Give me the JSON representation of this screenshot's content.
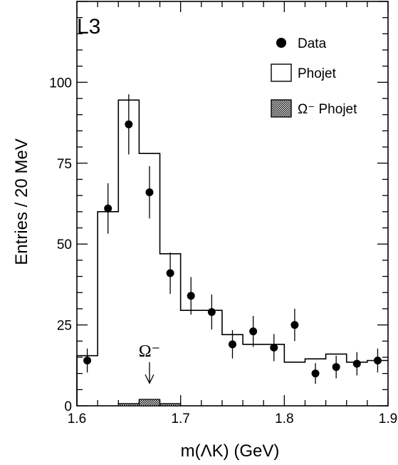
{
  "chart_data": {
    "type": "histogram",
    "experiment_label": "L3",
    "xlabel": "m(ΛK) (GeV)",
    "ylabel": "Entries / 20 MeV",
    "xlim": [
      1.6,
      1.9
    ],
    "ylim": [
      0,
      125
    ],
    "x_ticks": [
      {
        "value": 1.6,
        "label": "1.6"
      },
      {
        "value": 1.7,
        "label": "1.7"
      },
      {
        "value": 1.8,
        "label": "1.8"
      },
      {
        "value": 1.9,
        "label": "1.9"
      }
    ],
    "y_ticks": [
      {
        "value": 0,
        "label": "0"
      },
      {
        "value": 25,
        "label": "25"
      },
      {
        "value": 50,
        "label": "50"
      },
      {
        "value": 75,
        "label": "75"
      },
      {
        "value": 100,
        "label": "100"
      }
    ],
    "legend": {
      "position": "top-right",
      "entries": [
        {
          "label": "Data",
          "marker": "filled-circle"
        },
        {
          "label": "Phojet",
          "marker": "open-box"
        },
        {
          "label": "Ω⁻ Phojet",
          "marker": "hatched-box"
        }
      ]
    },
    "series": [
      {
        "name": "Data",
        "kind": "points-with-errors",
        "x": [
          1.61,
          1.63,
          1.65,
          1.67,
          1.69,
          1.71,
          1.73,
          1.75,
          1.77,
          1.79,
          1.81,
          1.83,
          1.85,
          1.87,
          1.89
        ],
        "y": [
          14,
          61,
          87,
          66,
          41,
          34,
          29,
          19,
          23,
          18,
          25,
          10,
          12,
          13,
          14
        ],
        "yerr": [
          3.7,
          7.8,
          9.3,
          8.1,
          6.4,
          5.8,
          5.4,
          4.4,
          4.8,
          4.2,
          5.0,
          3.2,
          3.5,
          3.6,
          3.7
        ]
      },
      {
        "name": "Phojet",
        "kind": "step",
        "bin_edges": [
          1.6,
          1.62,
          1.64,
          1.66,
          1.68,
          1.7,
          1.72,
          1.74,
          1.76,
          1.78,
          1.8,
          1.82,
          1.84,
          1.86,
          1.88,
          1.9
        ],
        "values": [
          15.5,
          60,
          94.5,
          78,
          47,
          29.5,
          29.5,
          22,
          19,
          19,
          13.5,
          14.5,
          16,
          13.5,
          14
        ]
      },
      {
        "name": "Ω⁻ Phojet",
        "kind": "hatched-histogram",
        "bin_edges": [
          1.64,
          1.66,
          1.68,
          1.7
        ],
        "values": [
          0.7,
          2.0,
          0.7
        ]
      }
    ],
    "annotations": [
      {
        "text": "Ω⁻",
        "x": 1.67,
        "arrow_from_y": 13.5,
        "arrow_to_y": 7
      }
    ]
  }
}
